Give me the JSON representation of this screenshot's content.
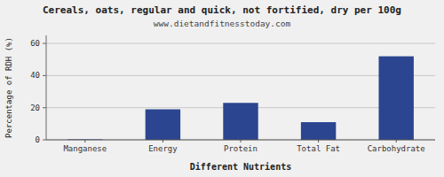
{
  "chart_data": {
    "type": "bar",
    "title": "Cereals, oats, regular and quick, not fortified, dry per 100g",
    "subtitle": "www.dietandfitnesstoday.com",
    "categories": [
      "Manganese",
      "Energy",
      "Protein",
      "Total Fat",
      "Carbohydrate"
    ],
    "values": [
      0.3,
      19,
      23,
      11,
      52
    ],
    "color": "#2b4590",
    "xlabel": "Different Nutrients",
    "ylabel": "Percentage of RDH (%)",
    "ylim": [
      0,
      65
    ],
    "yticks": [
      0,
      20,
      40,
      60
    ],
    "grid": true
  }
}
